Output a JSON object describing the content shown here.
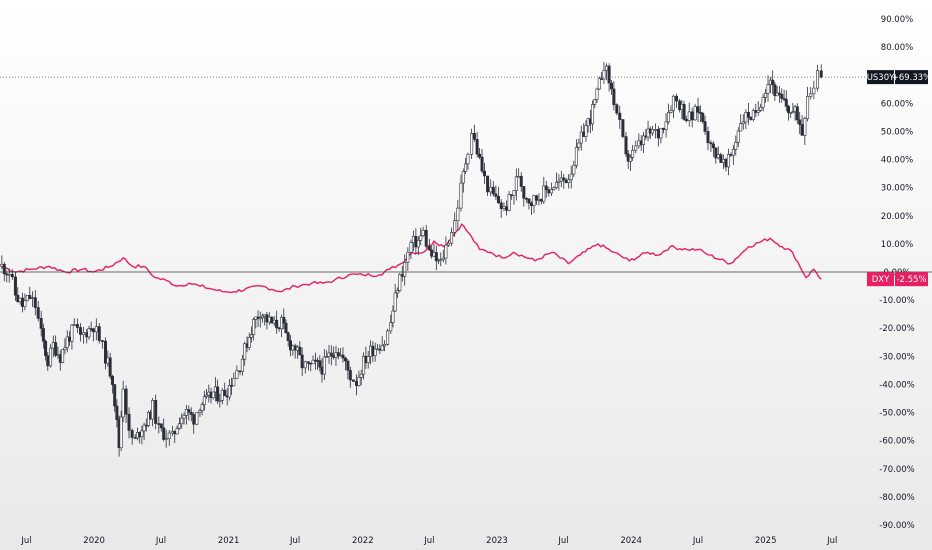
{
  "chart_data": {
    "type": "line",
    "y_unit": "%",
    "ylim": [
      -90,
      95
    ],
    "y_ticks": [
      "90.00%",
      "80.00%",
      "70.00%",
      "60.00%",
      "50.00%",
      "40.00%",
      "30.00%",
      "20.00%",
      "10.00%",
      "0.00%",
      "-10.00%",
      "-20.00%",
      "-30.00%",
      "-40.00%",
      "-50.00%",
      "-60.00%",
      "-70.00%",
      "-80.00%",
      "-90.00%"
    ],
    "x_ticks": [
      {
        "label": "Jul",
        "date": "2019-07-01"
      },
      {
        "label": "2020",
        "date": "2020-01-01"
      },
      {
        "label": "Jul",
        "date": "2020-07-01"
      },
      {
        "label": "2021",
        "date": "2021-01-01"
      },
      {
        "label": "Jul",
        "date": "2021-07-01"
      },
      {
        "label": "2022",
        "date": "2022-01-01"
      },
      {
        "label": "Jul",
        "date": "2022-07-01"
      },
      {
        "label": "2023",
        "date": "2023-01-01"
      },
      {
        "label": "Jul",
        "date": "2023-07-01"
      },
      {
        "label": "2024",
        "date": "2024-01-01"
      },
      {
        "label": "Jul",
        "date": "2024-07-01"
      },
      {
        "label": "2025",
        "date": "2025-01-01"
      },
      {
        "label": "Jul",
        "date": "2025-07-01"
      }
    ],
    "xlim": [
      "2019-04-20",
      "2025-09-20"
    ],
    "series": [
      {
        "name": "US30Y",
        "style": "candlestick",
        "color_up": "#ffffff",
        "color_down": "#2a2e39",
        "last_value_label": "+69.33%",
        "points": [
          {
            "date": "2019-04-25",
            "v": 2
          },
          {
            "date": "2019-05-15",
            "v": 0
          },
          {
            "date": "2019-06-01",
            "v": -8
          },
          {
            "date": "2019-06-20",
            "v": -12
          },
          {
            "date": "2019-07-10",
            "v": -9
          },
          {
            "date": "2019-07-25",
            "v": -12
          },
          {
            "date": "2019-08-10",
            "v": -22
          },
          {
            "date": "2019-08-28",
            "v": -32
          },
          {
            "date": "2019-09-12",
            "v": -26
          },
          {
            "date": "2019-10-01",
            "v": -30
          },
          {
            "date": "2019-10-20",
            "v": -24
          },
          {
            "date": "2019-11-08",
            "v": -20
          },
          {
            "date": "2019-11-25",
            "v": -23
          },
          {
            "date": "2019-12-12",
            "v": -21
          },
          {
            "date": "2019-12-30",
            "v": -19
          },
          {
            "date": "2020-01-15",
            "v": -24
          },
          {
            "date": "2020-02-01",
            "v": -30
          },
          {
            "date": "2020-02-20",
            "v": -38
          },
          {
            "date": "2020-03-09",
            "v": -62
          },
          {
            "date": "2020-03-20",
            "v": -40
          },
          {
            "date": "2020-04-05",
            "v": -58
          },
          {
            "date": "2020-04-22",
            "v": -60
          },
          {
            "date": "2020-05-10",
            "v": -55
          },
          {
            "date": "2020-05-28",
            "v": -52
          },
          {
            "date": "2020-06-08",
            "v": -48
          },
          {
            "date": "2020-06-25",
            "v": -56
          },
          {
            "date": "2020-07-15",
            "v": -58
          },
          {
            "date": "2020-08-01",
            "v": -59
          },
          {
            "date": "2020-08-20",
            "v": -52
          },
          {
            "date": "2020-09-08",
            "v": -50
          },
          {
            "date": "2020-09-28",
            "v": -52
          },
          {
            "date": "2020-10-15",
            "v": -47
          },
          {
            "date": "2020-11-02",
            "v": -46
          },
          {
            "date": "2020-11-20",
            "v": -43
          },
          {
            "date": "2020-12-08",
            "v": -44
          },
          {
            "date": "2020-12-28",
            "v": -42
          },
          {
            "date": "2021-01-15",
            "v": -37
          },
          {
            "date": "2021-02-01",
            "v": -33
          },
          {
            "date": "2021-02-20",
            "v": -25
          },
          {
            "date": "2021-03-10",
            "v": -18
          },
          {
            "date": "2021-03-28",
            "v": -14
          },
          {
            "date": "2021-04-15",
            "v": -17
          },
          {
            "date": "2021-05-05",
            "v": -19
          },
          {
            "date": "2021-05-25",
            "v": -18
          },
          {
            "date": "2021-06-12",
            "v": -25
          },
          {
            "date": "2021-07-01",
            "v": -27
          },
          {
            "date": "2021-07-20",
            "v": -33
          },
          {
            "date": "2021-08-06",
            "v": -34
          },
          {
            "date": "2021-08-25",
            "v": -33
          },
          {
            "date": "2021-09-12",
            "v": -34
          },
          {
            "date": "2021-10-01",
            "v": -30
          },
          {
            "date": "2021-10-20",
            "v": -27
          },
          {
            "date": "2021-11-08",
            "v": -31
          },
          {
            "date": "2021-11-28",
            "v": -37
          },
          {
            "date": "2021-12-15",
            "v": -39
          },
          {
            "date": "2022-01-03",
            "v": -32
          },
          {
            "date": "2022-01-22",
            "v": -28
          },
          {
            "date": "2022-02-10",
            "v": -26
          },
          {
            "date": "2022-03-01",
            "v": -25
          },
          {
            "date": "2022-03-18",
            "v": -18
          },
          {
            "date": "2022-04-05",
            "v": -5
          },
          {
            "date": "2022-04-25",
            "v": 3
          },
          {
            "date": "2022-05-12",
            "v": 10
          },
          {
            "date": "2022-06-01",
            "v": 11
          },
          {
            "date": "2022-06-14",
            "v": 14
          },
          {
            "date": "2022-07-01",
            "v": 7
          },
          {
            "date": "2022-07-20",
            "v": 4
          },
          {
            "date": "2022-08-01",
            "v": 3
          },
          {
            "date": "2022-08-22",
            "v": 12
          },
          {
            "date": "2022-09-08",
            "v": 18
          },
          {
            "date": "2022-09-25",
            "v": 30
          },
          {
            "date": "2022-10-14",
            "v": 44
          },
          {
            "date": "2022-10-24",
            "v": 50
          },
          {
            "date": "2022-11-08",
            "v": 43
          },
          {
            "date": "2022-11-28",
            "v": 33
          },
          {
            "date": "2022-12-15",
            "v": 28
          },
          {
            "date": "2023-01-05",
            "v": 25
          },
          {
            "date": "2023-01-20",
            "v": 22
          },
          {
            "date": "2023-02-10",
            "v": 27
          },
          {
            "date": "2023-03-01",
            "v": 35
          },
          {
            "date": "2023-03-15",
            "v": 28
          },
          {
            "date": "2023-04-05",
            "v": 25
          },
          {
            "date": "2023-04-25",
            "v": 27
          },
          {
            "date": "2023-05-15",
            "v": 29
          },
          {
            "date": "2023-06-05",
            "v": 31
          },
          {
            "date": "2023-06-25",
            "v": 32
          },
          {
            "date": "2023-07-15",
            "v": 34
          },
          {
            "date": "2023-08-05",
            "v": 42
          },
          {
            "date": "2023-08-25",
            "v": 50
          },
          {
            "date": "2023-09-12",
            "v": 55
          },
          {
            "date": "2023-09-30",
            "v": 63
          },
          {
            "date": "2023-10-19",
            "v": 74
          },
          {
            "date": "2023-11-02",
            "v": 68
          },
          {
            "date": "2023-11-15",
            "v": 61
          },
          {
            "date": "2023-12-01",
            "v": 52
          },
          {
            "date": "2023-12-18",
            "v": 40
          },
          {
            "date": "2024-01-05",
            "v": 42
          },
          {
            "date": "2024-01-22",
            "v": 45
          },
          {
            "date": "2024-02-10",
            "v": 48
          },
          {
            "date": "2024-02-28",
            "v": 50
          },
          {
            "date": "2024-03-15",
            "v": 49
          },
          {
            "date": "2024-04-05",
            "v": 55
          },
          {
            "date": "2024-04-25",
            "v": 62
          },
          {
            "date": "2024-05-12",
            "v": 60
          },
          {
            "date": "2024-05-30",
            "v": 55
          },
          {
            "date": "2024-06-15",
            "v": 55
          },
          {
            "date": "2024-07-01",
            "v": 58
          },
          {
            "date": "2024-07-20",
            "v": 52
          },
          {
            "date": "2024-08-05",
            "v": 44
          },
          {
            "date": "2024-08-25",
            "v": 42
          },
          {
            "date": "2024-09-15",
            "v": 37
          },
          {
            "date": "2024-10-05",
            "v": 44
          },
          {
            "date": "2024-10-25",
            "v": 54
          },
          {
            "date": "2024-11-15",
            "v": 56
          },
          {
            "date": "2024-12-05",
            "v": 55
          },
          {
            "date": "2024-12-25",
            "v": 64
          },
          {
            "date": "2025-01-14",
            "v": 69
          },
          {
            "date": "2025-02-01",
            "v": 62
          },
          {
            "date": "2025-02-20",
            "v": 60
          },
          {
            "date": "2025-03-10",
            "v": 57
          },
          {
            "date": "2025-03-28",
            "v": 56
          },
          {
            "date": "2025-04-10",
            "v": 50
          },
          {
            "date": "2025-04-25",
            "v": 64
          },
          {
            "date": "2025-05-12",
            "v": 66
          },
          {
            "date": "2025-05-22",
            "v": 73
          },
          {
            "date": "2025-06-01",
            "v": 69.33
          }
        ]
      },
      {
        "name": "DXY",
        "style": "line",
        "color": "#e91e63",
        "last_value_label": "-2.55%",
        "points": [
          {
            "date": "2019-04-25",
            "v": 2
          },
          {
            "date": "2019-06-01",
            "v": 0
          },
          {
            "date": "2019-07-15",
            "v": 1
          },
          {
            "date": "2019-09-01",
            "v": 2
          },
          {
            "date": "2019-10-15",
            "v": 0
          },
          {
            "date": "2019-12-01",
            "v": 1
          },
          {
            "date": "2019-12-30",
            "v": 0
          },
          {
            "date": "2020-02-15",
            "v": 2
          },
          {
            "date": "2020-03-20",
            "v": 5
          },
          {
            "date": "2020-04-15",
            "v": 2
          },
          {
            "date": "2020-05-15",
            "v": 2
          },
          {
            "date": "2020-06-15",
            "v": -2
          },
          {
            "date": "2020-07-15",
            "v": -3
          },
          {
            "date": "2020-08-15",
            "v": -5
          },
          {
            "date": "2020-09-15",
            "v": -4
          },
          {
            "date": "2020-10-15",
            "v": -5
          },
          {
            "date": "2020-11-15",
            "v": -6
          },
          {
            "date": "2020-12-15",
            "v": -7
          },
          {
            "date": "2021-01-15",
            "v": -7
          },
          {
            "date": "2021-03-31",
            "v": -5
          },
          {
            "date": "2021-05-25",
            "v": -7
          },
          {
            "date": "2021-07-01",
            "v": -5
          },
          {
            "date": "2021-08-15",
            "v": -4
          },
          {
            "date": "2021-09-15",
            "v": -4
          },
          {
            "date": "2021-10-15",
            "v": -3
          },
          {
            "date": "2021-11-24",
            "v": -1
          },
          {
            "date": "2022-01-01",
            "v": -1
          },
          {
            "date": "2022-02-15",
            "v": -1
          },
          {
            "date": "2022-03-15",
            "v": 1
          },
          {
            "date": "2022-04-15",
            "v": 3
          },
          {
            "date": "2022-05-15",
            "v": 7
          },
          {
            "date": "2022-06-15",
            "v": 7
          },
          {
            "date": "2022-07-14",
            "v": 11
          },
          {
            "date": "2022-08-10",
            "v": 9
          },
          {
            "date": "2022-09-27",
            "v": 17
          },
          {
            "date": "2022-10-15",
            "v": 14
          },
          {
            "date": "2022-11-15",
            "v": 8
          },
          {
            "date": "2022-12-15",
            "v": 7
          },
          {
            "date": "2023-01-15",
            "v": 5
          },
          {
            "date": "2023-02-15",
            "v": 7
          },
          {
            "date": "2023-04-14",
            "v": 4
          },
          {
            "date": "2023-05-31",
            "v": 7
          },
          {
            "date": "2023-07-14",
            "v": 3
          },
          {
            "date": "2023-08-15",
            "v": 6
          },
          {
            "date": "2023-10-03",
            "v": 10
          },
          {
            "date": "2023-11-15",
            "v": 7
          },
          {
            "date": "2023-12-27",
            "v": 4
          },
          {
            "date": "2024-02-15",
            "v": 7
          },
          {
            "date": "2024-03-15",
            "v": 6
          },
          {
            "date": "2024-04-16",
            "v": 9
          },
          {
            "date": "2024-06-01",
            "v": 8
          },
          {
            "date": "2024-07-01",
            "v": 8
          },
          {
            "date": "2024-08-01",
            "v": 6
          },
          {
            "date": "2024-09-27",
            "v": 3
          },
          {
            "date": "2024-11-15",
            "v": 9
          },
          {
            "date": "2025-01-13",
            "v": 12
          },
          {
            "date": "2025-02-15",
            "v": 9
          },
          {
            "date": "2025-03-15",
            "v": 7
          },
          {
            "date": "2025-04-21",
            "v": -2
          },
          {
            "date": "2025-05-12",
            "v": 1
          },
          {
            "date": "2025-06-01",
            "v": -2.55
          }
        ]
      }
    ]
  }
}
